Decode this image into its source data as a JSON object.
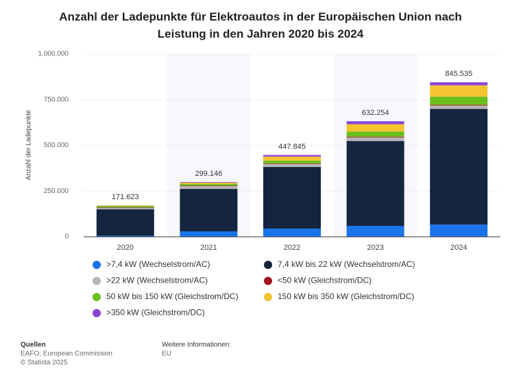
{
  "chart_data": {
    "type": "bar",
    "stacked": true,
    "title": "Anzahl der Ladepunkte für Elektroautos in der Europäischen Union nach Leistung in den Jahren 2020 bis 2024",
    "y_label": "Anzahl der Ladepunkte",
    "categories": [
      "2020",
      "2021",
      "2022",
      "2023",
      "2024"
    ],
    "series": [
      {
        "name": ">7,4 kW (Wechselstrom/AC)",
        "color": "#1a73e8",
        "values": [
          6000,
          30000,
          45000,
          60000,
          67000
        ]
      },
      {
        "name": "7,4 kW bis 22 kW (Wechselstrom/AC)",
        "color": "#14253f",
        "values": [
          145000,
          232000,
          337000,
          464000,
          633000
        ]
      },
      {
        "name": ">22 kW (Wechselstrom/AC)",
        "color": "#b5b5b5",
        "values": [
          8000,
          15000,
          17000,
          20000,
          18000
        ]
      },
      {
        "name": "<50 kW (Gleichstrom/DC)",
        "color": "#a11520",
        "values": [
          2000,
          3000,
          3000,
          4000,
          4000
        ]
      },
      {
        "name": "50 kW bis 150 kW (Gleichstrom/DC)",
        "color": "#6abf1c",
        "values": [
          8000,
          10000,
          15000,
          28000,
          45000
        ]
      },
      {
        "name": "150 kW bis 350 kW (Gleichstrom/DC)",
        "color": "#f4c430",
        "values": [
          2000,
          6000,
          22000,
          40000,
          62000
        ]
      },
      {
        "name": ">350 kW (Gleichstrom/DC)",
        "color": "#8a44d4",
        "values": [
          623,
          3146,
          8845,
          16254,
          16535
        ]
      }
    ],
    "totals": {
      "values": [
        171623,
        299146,
        447845,
        632254,
        845535
      ],
      "value_labels": [
        "171.623",
        "299.146",
        "447.845",
        "632.254",
        "845.535"
      ]
    },
    "ylim": [
      0,
      1000000
    ],
    "yticks": [
      0,
      {
        "value": 250000,
        "label": "250.000"
      },
      {
        "value": 500000,
        "label": "500.000"
      },
      {
        "value": 750000,
        "label": "750.000"
      },
      {
        "value": 1000000,
        "label": "1.000.000"
      }
    ],
    "grid": true
  },
  "footer": {
    "sources_title": "Quellen",
    "sources": "EAFO; European Commission",
    "copyright": "© Statista 2025",
    "info_title": "Weitere Informationen:",
    "info": "EU"
  }
}
